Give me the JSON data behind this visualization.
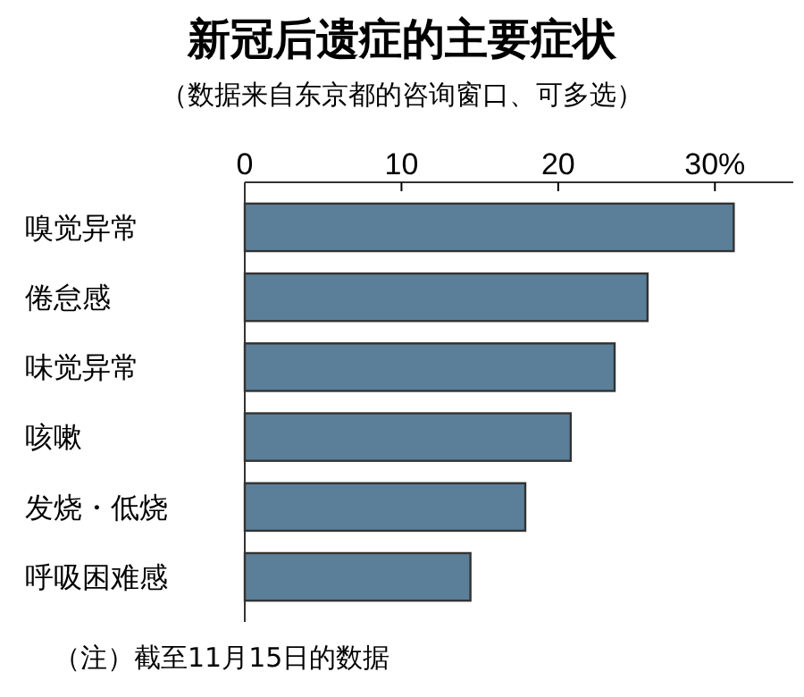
{
  "chart_data": {
    "type": "bar",
    "orientation": "horizontal",
    "title": "新冠后遗症的主要症状",
    "subtitle": "（数据来自东京都的咨询窗口、可多选）",
    "categories": [
      "嗅觉异常",
      "倦怠感",
      "味觉异常",
      "咳嗽",
      "发烧・低烧",
      "呼吸困难感"
    ],
    "values": [
      31.2,
      25.7,
      23.6,
      20.8,
      17.9,
      14.4
    ],
    "color": "#5b7f99",
    "xlim": [
      0,
      35
    ],
    "xticks": [
      0,
      10,
      20,
      {
        "value": 30,
        "label": "30%"
      }
    ],
    "grid": false,
    "annotations": [
      "（注）截至11月15日的数据"
    ]
  }
}
